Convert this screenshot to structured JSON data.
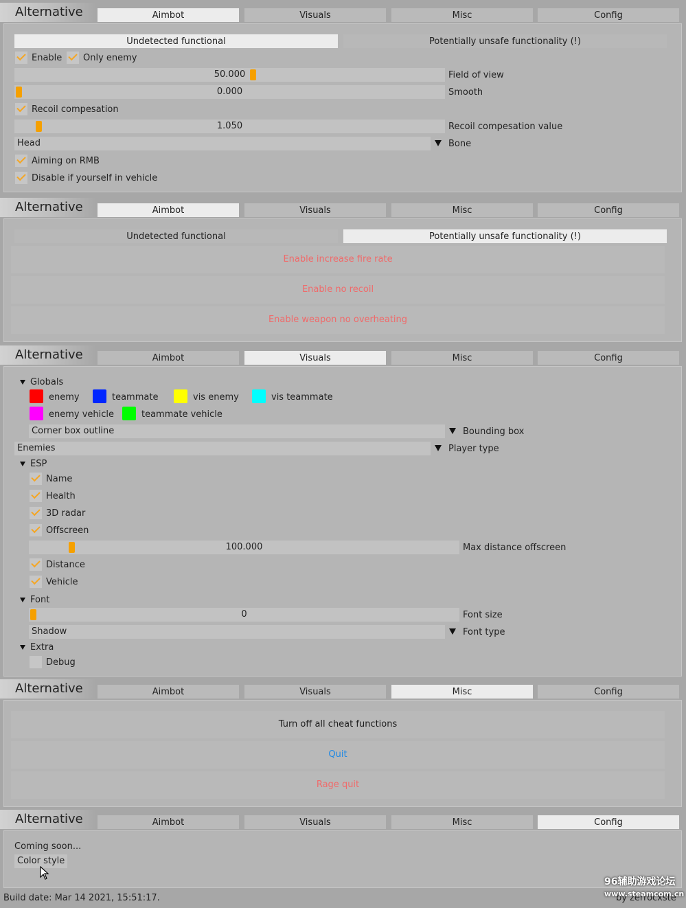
{
  "app_title": "Alternative",
  "tabs": [
    "Aimbot",
    "Visuals",
    "Misc",
    "Config"
  ],
  "subtabs": [
    "Undetected functional",
    "Potentially unsafe functionality (!)"
  ],
  "aimbot": {
    "enable_label": "Enable",
    "only_enemy_label": "Only enemy",
    "fov_value": "50.000",
    "fov_label": "Field of view",
    "smooth_value": "0.000",
    "smooth_label": "Smooth",
    "recoil_label": "Recoil compesation",
    "recoil_value": "1.050",
    "recoil_value_label": "Recoil compesation value",
    "bone_value": "Head",
    "bone_label": "Bone",
    "rmb_label": "Aiming on RMB",
    "vehicle_label": "Disable if yourself in vehicle"
  },
  "unsafe": {
    "fire_rate": "Enable increase fire rate",
    "no_recoil": "Enable no recoil",
    "no_overheat": "Enable weapon no overheating"
  },
  "visuals": {
    "globals": "Globals",
    "colors": {
      "enemy": "enemy",
      "teammate": "teammate",
      "vis_enemy": "vis enemy",
      "vis_teammate": "vis teammate",
      "enemy_vehicle": "enemy vehicle",
      "teammate_vehicle": "teammate vehicle"
    },
    "color_values": {
      "enemy": "#ff0000",
      "teammate": "#0026ff",
      "vis_enemy": "#ffff00",
      "vis_teammate": "#00ffff",
      "enemy_vehicle": "#ff00ff",
      "teammate_vehicle": "#00ff00"
    },
    "bbox_value": "Corner box outline",
    "bbox_label": "Bounding box",
    "player_type_value": "Enemies",
    "player_type_label": "Player type",
    "esp": "ESP",
    "name": "Name",
    "health": "Health",
    "radar": "3D radar",
    "offscreen": "Offscreen",
    "max_dist_value": "100.000",
    "max_dist_label": "Max distance offscreen",
    "distance": "Distance",
    "vehicle": "Vehicle",
    "font": "Font",
    "font_size_value": "0",
    "font_size_label": "Font size",
    "font_type_value": "Shadow",
    "font_type_label": "Font type",
    "extra": "Extra",
    "debug": "Debug"
  },
  "misc": {
    "turn_off": "Turn off all cheat functions",
    "quit": "Quit",
    "rage_quit": "Rage quit"
  },
  "config": {
    "coming_soon": "Coming soon...",
    "color_style": "Color style"
  },
  "footer": {
    "build_date": "Build date: Mar 14 2021, 15:51:17.",
    "author": "by zerrocxste",
    "watermark_1": "96辅助游戏论坛",
    "watermark_2": "www.steamcom.cn"
  },
  "accent": "#f5a000"
}
